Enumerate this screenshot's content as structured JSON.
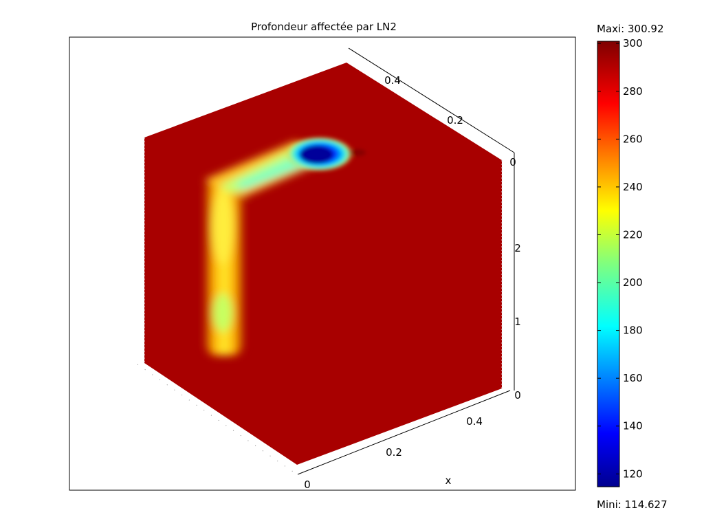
{
  "chart_data": {
    "type": "heatmap",
    "title": "Profondeur affectée par LN2",
    "xlabel": "x",
    "x_ticks": [
      "0",
      "0.2",
      "0.4"
    ],
    "y_ticks": [
      "0",
      "0.2",
      "0.4"
    ],
    "z_ticks": [
      "0",
      "1",
      "2"
    ],
    "colorbar": {
      "max_label": "Maxi: 300.92",
      "min_label": "Mini: 114.627",
      "max": 300.92,
      "min": 114.627,
      "ticks": [
        120,
        140,
        160,
        180,
        200,
        220,
        240,
        260,
        280,
        300
      ],
      "colormap": "jet"
    },
    "grid": false,
    "legend": "colorbar-right"
  }
}
